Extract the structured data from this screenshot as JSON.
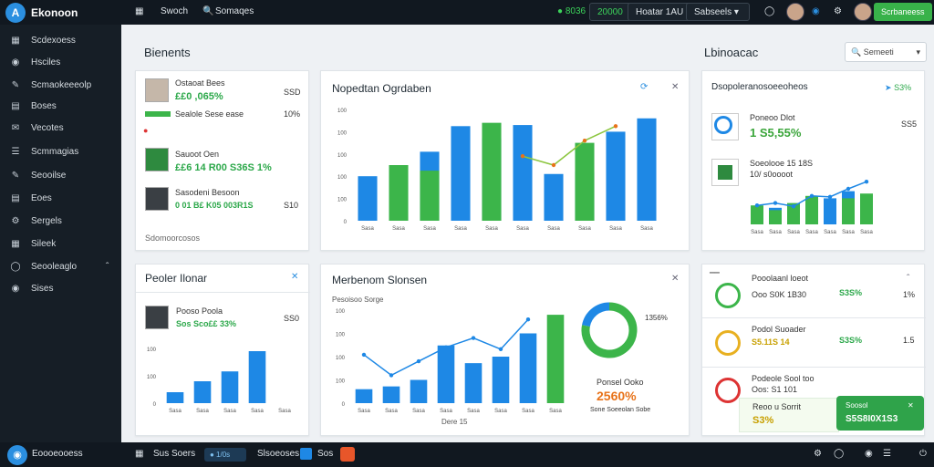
{
  "app": {
    "title": "Ekonoon",
    "logo_letter": "A"
  },
  "topbar": {
    "btn1": "Swoch",
    "btn2": "Somaqes",
    "stat1": "● 8036",
    "stat2": "20000",
    "dropdown1": "Hoatar 1AU",
    "dropdown2": "Sabseels",
    "action": "Scrbaneess"
  },
  "sidebar": {
    "items": [
      {
        "label": "Scdexoess",
        "icon": "grid-icon"
      },
      {
        "label": "Hsciles",
        "icon": "circle-icon"
      },
      {
        "label": "Scmaokeeeolp",
        "icon": "pen-icon"
      },
      {
        "label": "Boses",
        "icon": "doc-icon"
      },
      {
        "label": "Vecotes",
        "icon": "chat-icon"
      },
      {
        "label": "Scmmagias",
        "icon": "list-icon"
      },
      {
        "label": "Seooilse",
        "icon": "pen-icon"
      },
      {
        "label": "Eoes",
        "icon": "doc-icon"
      },
      {
        "label": "Sergels",
        "icon": "gear-icon"
      },
      {
        "label": "Sileek",
        "icon": "calendar-icon"
      },
      {
        "label": "Seooleaglo",
        "icon": "circle-icon"
      },
      {
        "label": "Sises",
        "icon": "user-icon"
      }
    ]
  },
  "header": {
    "title": "Bienents",
    "right_title": "Lbinoacac",
    "search_placeholder": "Semeeti"
  },
  "people_panel": {
    "rows": [
      {
        "name": "Ostaoat Bees",
        "value": "££0 ,065%",
        "meta": "SSD"
      },
      {
        "name": "Sealole Sese ease",
        "value": "",
        "meta": "10%"
      },
      {
        "name": "Sauoot Oen",
        "value": "££6 14 R00 S36S 1%",
        "meta": ""
      },
      {
        "name": "Sasodeni Besoon",
        "value": "0 01 B£ K05 003R1S",
        "meta": "S10"
      }
    ],
    "footer": "Sdomoorcosos"
  },
  "chart_top": {
    "title": "Nopedtan Ogrdaben",
    "icons": [
      "refresh-icon",
      "close-icon"
    ]
  },
  "chart_bottom": {
    "title": "Merbenom Slonsen",
    "subtitle": "Pesoisoo Sorge",
    "xlabel": "Dere 15"
  },
  "donut": {
    "value": "1356%",
    "caption": "Ponsel Ooko",
    "big": "2560%",
    "sub": "Sone Soeeolan Sobe"
  },
  "panel_left_bottom": {
    "title": "Peoler Ilonar",
    "person": "Pooso Poola",
    "value": "Sos Sco££ 33%",
    "meta": "SS0"
  },
  "right_top": {
    "title": "Dsopoleranosoeeoheos",
    "badge": "S3%",
    "item1_name": "Poneoo Dlot",
    "item1_value": "1 S5,55%",
    "item1_meta": "SS5",
    "item2_name": "Soeolooe 15 18S",
    "item2_sub": "10/ s0oooot"
  },
  "right_bottom": {
    "rows": [
      {
        "name": "Pooolaanl loeot",
        "sub": "Ooo S0K 1B30",
        "value": "S3S%",
        "meta": "1%"
      },
      {
        "name": "Podol Suoader",
        "sub": "S5.11S 14",
        "value": "S3S%",
        "meta": "1.5"
      },
      {
        "name": "Podeole Sool too",
        "sub": "Oos: S1 101",
        "value": "",
        "meta": ""
      }
    ],
    "callout_title": "Reoo u Sorrit",
    "callout_value": "S3%",
    "toast_title": "Soosol",
    "toast_value": "S5S8I0X1S3"
  },
  "bottombar": {
    "brand": "Eoooeooess",
    "item1": "Sus Soers",
    "pill": "● 1/0s",
    "item2": "Slsoeoses",
    "item3": "Sos"
  },
  "colors": {
    "blue": "#1e88e5",
    "green": "#3cb54a",
    "accent_green": "#2fa34a",
    "dark": "#111820"
  },
  "chart_data": [
    {
      "type": "bar",
      "title": "Nopedtan Ogrdaben",
      "ylabel": "",
      "yticks": [
        "100",
        "100",
        "100",
        "100",
        "100",
        "0"
      ],
      "categories": [
        "Sasa",
        "Sasa",
        "Sasa",
        "Sasa",
        "Sasa",
        "Sasa",
        "Sasa",
        "Sasa",
        "Sasa",
        "Sasa"
      ],
      "series": [
        {
          "color": "#1e88e5",
          "values": [
            40,
            0,
            62,
            85,
            74,
            86,
            42,
            44,
            80,
            92
          ]
        },
        {
          "color": "#3cb54a",
          "values": [
            0,
            50,
            45,
            0,
            88,
            0,
            0,
            70,
            0,
            0
          ]
        }
      ],
      "line": [
        null,
        null,
        null,
        null,
        null,
        58,
        50,
        72,
        85,
        null
      ],
      "ylim": [
        0,
        100
      ]
    },
    {
      "type": "bar",
      "title": "Peoler Ilonar",
      "yticks": [
        "100",
        "100",
        "0"
      ],
      "categories": [
        "Sasa",
        "Sasa",
        "Sasa",
        "Sasa",
        "Sasa"
      ],
      "values": [
        20,
        40,
        58,
        95,
        0
      ],
      "ylim": [
        0,
        100
      ]
    },
    {
      "type": "bar",
      "title": "Merbenom Slonsen",
      "yticks": [
        "100",
        "100",
        "100",
        "100",
        "0"
      ],
      "categories": [
        "Sasa",
        "Sasa",
        "Sasa",
        "Sasa",
        "Sasa",
        "Sasa",
        "Sasa",
        "Sasa"
      ],
      "series": [
        {
          "color": "#1e88e5",
          "values": [
            15,
            18,
            25,
            62,
            43,
            50,
            75,
            0
          ]
        },
        {
          "color": "#3cb54a",
          "values": [
            0,
            0,
            0,
            0,
            0,
            0,
            0,
            95
          ]
        }
      ],
      "line": [
        52,
        30,
        45,
        60,
        70,
        58,
        90,
        null
      ],
      "ylim": [
        0,
        100
      ]
    },
    {
      "type": "bar",
      "title": "Dsopoleranosoeeoheos",
      "categories": [
        "Sasa",
        "Sasa",
        "Sasa",
        "Sasa",
        "Sasa",
        "Sasa",
        "Sasa"
      ],
      "series": [
        {
          "color": "#1e88e5",
          "values": [
            30,
            35,
            25,
            50,
            55,
            70,
            40
          ]
        },
        {
          "color": "#3cb54a",
          "values": [
            40,
            30,
            45,
            60,
            0,
            55,
            65
          ]
        }
      ],
      "line": [
        40,
        45,
        38,
        60,
        58,
        75,
        90
      ],
      "ylim": [
        0,
        100
      ]
    },
    {
      "type": "pie",
      "values": [
        78,
        22
      ],
      "colors": [
        "#3cb54a",
        "#1e88e5"
      ]
    }
  ]
}
